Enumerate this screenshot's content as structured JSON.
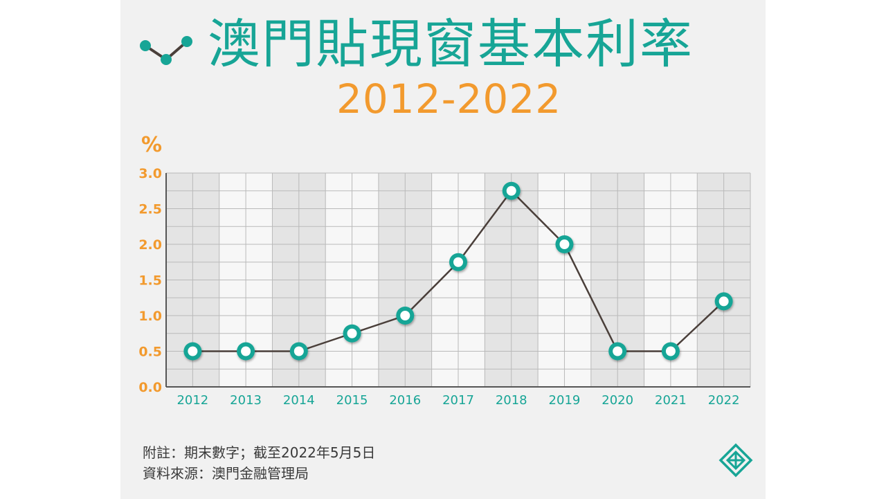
{
  "header": {
    "title": "澳門貼現窗基本利率",
    "subtitle": "2012-2022"
  },
  "colors": {
    "accent": "#17a596",
    "orange": "#f29a2e",
    "line": "#4a3f3a",
    "background": "#f1f1f1"
  },
  "icons": {
    "title_icon": "line-chart-icon",
    "logo": "amcm-logo-icon"
  },
  "chart_data": {
    "type": "line",
    "title": "澳門貼現窗基本利率",
    "subtitle": "2012-2022",
    "ylabel": "%",
    "xlabel": "",
    "categories": [
      "2012",
      "2013",
      "2014",
      "2015",
      "2016",
      "2017",
      "2018",
      "2019",
      "2020",
      "2021",
      "2022"
    ],
    "values": [
      0.5,
      0.5,
      0.5,
      0.75,
      1.0,
      1.75,
      2.75,
      2.0,
      0.5,
      0.5,
      1.2
    ],
    "ylim": [
      0,
      3
    ],
    "yticks": [
      "0.0",
      "0.5",
      "1.0",
      "1.5",
      "2.0",
      "2.5",
      "3.0"
    ],
    "grid": true
  },
  "footer": {
    "note": "附註：期末數字；截至2022年5月5日",
    "source": "資料來源：澳門金融管理局"
  }
}
